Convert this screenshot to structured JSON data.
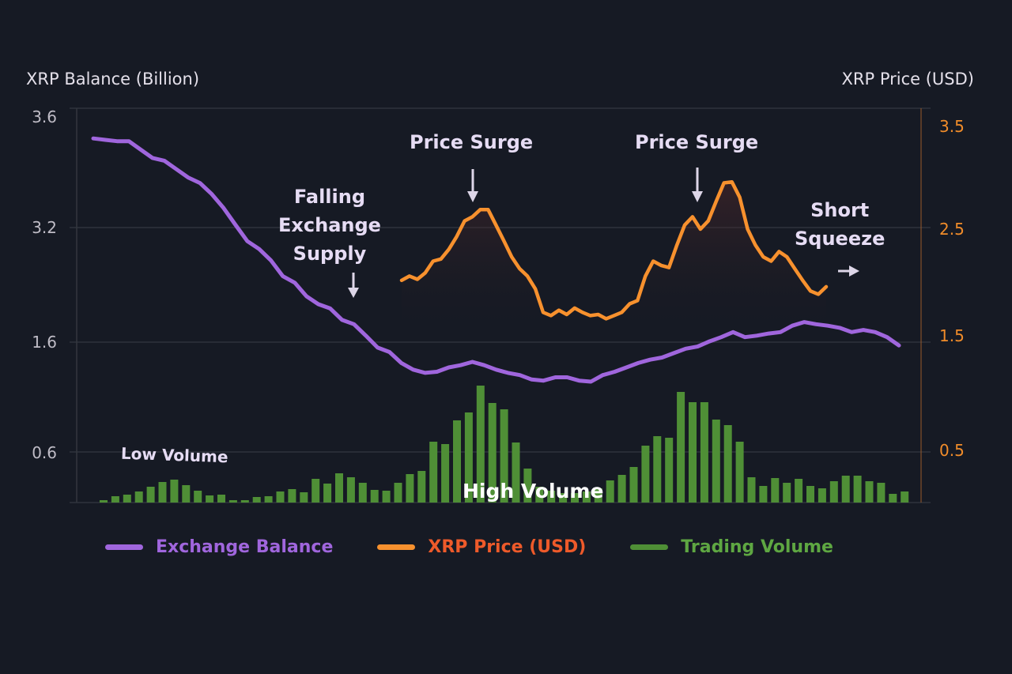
{
  "chart_data": {
    "type": "line+bar",
    "y_left": {
      "label": "XRP Balance (Billion)",
      "ticks": [
        "3.6",
        "3.2",
        "1.6",
        "0.6"
      ],
      "tick_values": [
        3.6,
        3.2,
        1.6,
        0.6
      ]
    },
    "y_right": {
      "label": "XRP Price (USD)",
      "ticks": [
        "3.5",
        "2.5",
        "1.5",
        "0.5"
      ],
      "tick_values": [
        3.5,
        2.5,
        1.5,
        0.5
      ]
    },
    "grid": true,
    "legend_position": "bottom",
    "colors": {
      "balance": "#a066dd",
      "price": "#f7912e",
      "price_label": "#ee5a2a",
      "volume": "#4f8f36",
      "volume_label": "#5ea742",
      "background": "#161a24"
    },
    "series": [
      {
        "name": "Exchange Balance",
        "axis": "left",
        "type": "line",
        "values": [
          3.52,
          3.515,
          3.51,
          3.51,
          3.48,
          3.45,
          3.44,
          3.41,
          3.38,
          3.36,
          3.32,
          3.27,
          3.21,
          3.01,
          2.9,
          2.74,
          2.52,
          2.43,
          2.24,
          2.13,
          2.07,
          1.91,
          1.85,
          1.69,
          1.55,
          1.51,
          1.41,
          1.35,
          1.32,
          1.33,
          1.37,
          1.39,
          1.42,
          1.39,
          1.35,
          1.32,
          1.3,
          1.26,
          1.25,
          1.28,
          1.28,
          1.25,
          1.24,
          1.3,
          1.33,
          1.37,
          1.41,
          1.44,
          1.46,
          1.5,
          1.54,
          1.56,
          1.61,
          1.67,
          1.74,
          1.67,
          1.69,
          1.72,
          1.74,
          1.83,
          1.88,
          1.85,
          1.83,
          1.8,
          1.74,
          1.77,
          1.74,
          1.67,
          1.57
        ]
      },
      {
        "name": "XRP Price (USD)",
        "axis": "right",
        "type": "line",
        "values": [
          2.02,
          2.06,
          2.03,
          2.09,
          2.2,
          2.22,
          2.31,
          2.43,
          2.58,
          2.62,
          2.69,
          2.69,
          2.54,
          2.39,
          2.24,
          2.13,
          2.06,
          1.94,
          1.72,
          1.69,
          1.74,
          1.7,
          1.76,
          1.72,
          1.69,
          1.7,
          1.66,
          1.69,
          1.72,
          1.8,
          1.83,
          2.06,
          2.2,
          2.16,
          2.14,
          2.35,
          2.54,
          2.62,
          2.5,
          2.58,
          2.77,
          2.95,
          2.96,
          2.81,
          2.5,
          2.35,
          2.24,
          2.2,
          2.29,
          2.24,
          2.13,
          2.02,
          1.92,
          1.89,
          1.96
        ]
      },
      {
        "name": "Trading Volume",
        "axis": "none (relative)",
        "type": "bar",
        "values": [
          3,
          8,
          10,
          14,
          20,
          26,
          29,
          22,
          15,
          9,
          10,
          3,
          3,
          7,
          8,
          14,
          17,
          13,
          30,
          24,
          37,
          32,
          25,
          16,
          15,
          25,
          36,
          40,
          77,
          74,
          104,
          114,
          148,
          126,
          118,
          76,
          43,
          20,
          15,
          12,
          12,
          14,
          18,
          28,
          35,
          45,
          72,
          84,
          82,
          140,
          127,
          127,
          105,
          98,
          77,
          32,
          21,
          31,
          25,
          30,
          21,
          18,
          27,
          34,
          34,
          27,
          25,
          11,
          14
        ]
      }
    ],
    "annotations": {
      "falling_supply": "Falling\nExchange\nSupply",
      "price_surge_1": "Price Surge",
      "price_surge_2": "Price Surge",
      "short_squeeze": "Short\nSqueeze",
      "low_volume": "Low Volume",
      "high_volume": "High Volume"
    }
  }
}
